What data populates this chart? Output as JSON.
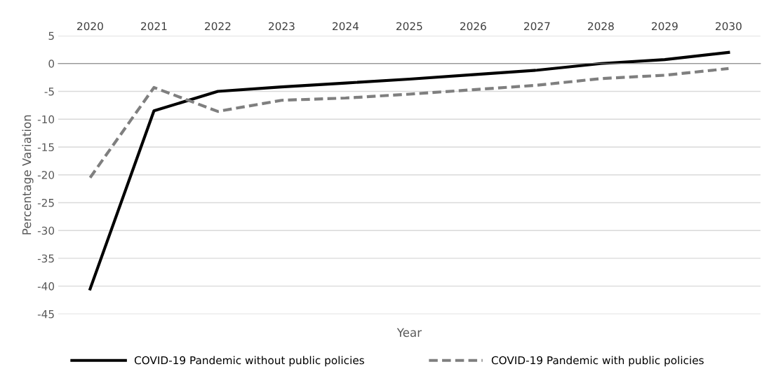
{
  "chart_data": {
    "type": "line",
    "xlabel": "Year",
    "ylabel": "Percentage Variation",
    "categories": [
      "2020",
      "2021",
      "2022",
      "2023",
      "2024",
      "2025",
      "2026",
      "2027",
      "2028",
      "2029",
      "2030"
    ],
    "series": [
      {
        "name": "COVID-19 Pandemic without public policies",
        "color": "#000000",
        "line_style": "solid",
        "values": [
          -40.5,
          -8.5,
          -5,
          -4.2,
          -3.5,
          -2.8,
          -2,
          -1.2,
          0,
          0.7,
          2
        ]
      },
      {
        "name": "COVID-19 Pandemic with public policies",
        "color": "#7f7f7f",
        "line_style": "dashed",
        "values": [
          -20.5,
          -4.3,
          -8.6,
          -6.6,
          -6.2,
          -5.5,
          -4.7,
          -3.9,
          -2.7,
          -2.1,
          -0.9
        ]
      }
    ],
    "ylim": [
      -45,
      5
    ],
    "yticks": [
      -45,
      -40,
      -35,
      -30,
      -25,
      -20,
      -15,
      -10,
      -5,
      0,
      5
    ],
    "grid": "y",
    "legend": "bottom",
    "marker": "none"
  }
}
